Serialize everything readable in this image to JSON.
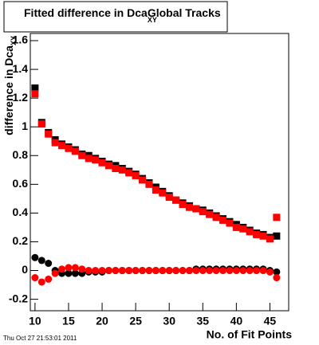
{
  "chart_data": {
    "type": "scatter",
    "title": "Fitted difference in Dca",
    "title_subscript": "XY",
    "title_suffix": "Global Tracks",
    "y_label": "difference in Dca",
    "y_label_subscript": "XY",
    "x_label": "No. of Fit Points",
    "timestamp": "Thu Oct 27 21:53:01 2011",
    "x": [
      10,
      11,
      12,
      13,
      14,
      15,
      16,
      17,
      18,
      19,
      20,
      21,
      22,
      23,
      24,
      25,
      26,
      27,
      28,
      29,
      30,
      31,
      32,
      33,
      34,
      35,
      36,
      37,
      38,
      39,
      40,
      41,
      42,
      43,
      44,
      45,
      46
    ],
    "series": [
      {
        "color": "#000000",
        "marker": "square",
        "values": [
          1.27,
          1.03,
          0.96,
          0.91,
          0.88,
          0.86,
          0.84,
          0.81,
          0.8,
          0.78,
          0.76,
          0.74,
          0.73,
          0.71,
          0.69,
          0.67,
          0.64,
          0.61,
          0.58,
          0.55,
          0.52,
          0.49,
          0.47,
          0.45,
          0.43,
          0.42,
          0.4,
          0.38,
          0.36,
          0.34,
          0.32,
          0.3,
          0.28,
          0.26,
          0.25,
          0.23,
          0.24
        ]
      },
      {
        "color": "#ff0000",
        "marker": "square",
        "values": [
          1.23,
          1.02,
          0.95,
          0.89,
          0.87,
          0.85,
          0.83,
          0.8,
          0.78,
          0.77,
          0.75,
          0.73,
          0.71,
          0.7,
          0.68,
          0.66,
          0.63,
          0.6,
          0.56,
          0.54,
          0.51,
          0.49,
          0.46,
          0.44,
          0.43,
          0.41,
          0.39,
          0.37,
          0.35,
          0.33,
          0.3,
          0.29,
          0.27,
          0.25,
          0.24,
          0.22,
          0.37
        ]
      },
      {
        "color": "#000000",
        "marker": "circle",
        "values": [
          0.09,
          0.07,
          0.05,
          0.0,
          -0.02,
          -0.02,
          -0.02,
          -0.02,
          -0.01,
          -0.01,
          -0.01,
          0.0,
          0.0,
          0.0,
          0.0,
          0.0,
          0.0,
          0.0,
          0.0,
          0.0,
          0.0,
          0.0,
          0.0,
          0.0,
          0.01,
          0.01,
          0.01,
          0.01,
          0.01,
          0.01,
          0.01,
          0.01,
          0.01,
          0.01,
          0.01,
          0.0,
          -0.01
        ]
      },
      {
        "color": "#ff0000",
        "marker": "circle",
        "values": [
          -0.05,
          -0.08,
          -0.06,
          -0.02,
          0.01,
          0.02,
          0.02,
          0.01,
          0.0,
          0.0,
          0.0,
          0.0,
          0.0,
          0.0,
          0.0,
          0.0,
          0.0,
          0.0,
          0.0,
          0.0,
          0.0,
          0.0,
          0.0,
          0.0,
          0.0,
          0.0,
          0.0,
          0.0,
          0.0,
          0.0,
          0.0,
          0.0,
          0.0,
          0.0,
          0.0,
          -0.01,
          -0.05
        ]
      }
    ],
    "xlim": [
      9.3,
      47.8
    ],
    "ylim": [
      -0.28,
      1.65
    ],
    "xticks": [
      10,
      15,
      20,
      25,
      30,
      35,
      40,
      45
    ],
    "yticks": [
      -0.2,
      0,
      0.2,
      0.4,
      0.6,
      0.8,
      1,
      1.2,
      1.4,
      1.6
    ]
  }
}
